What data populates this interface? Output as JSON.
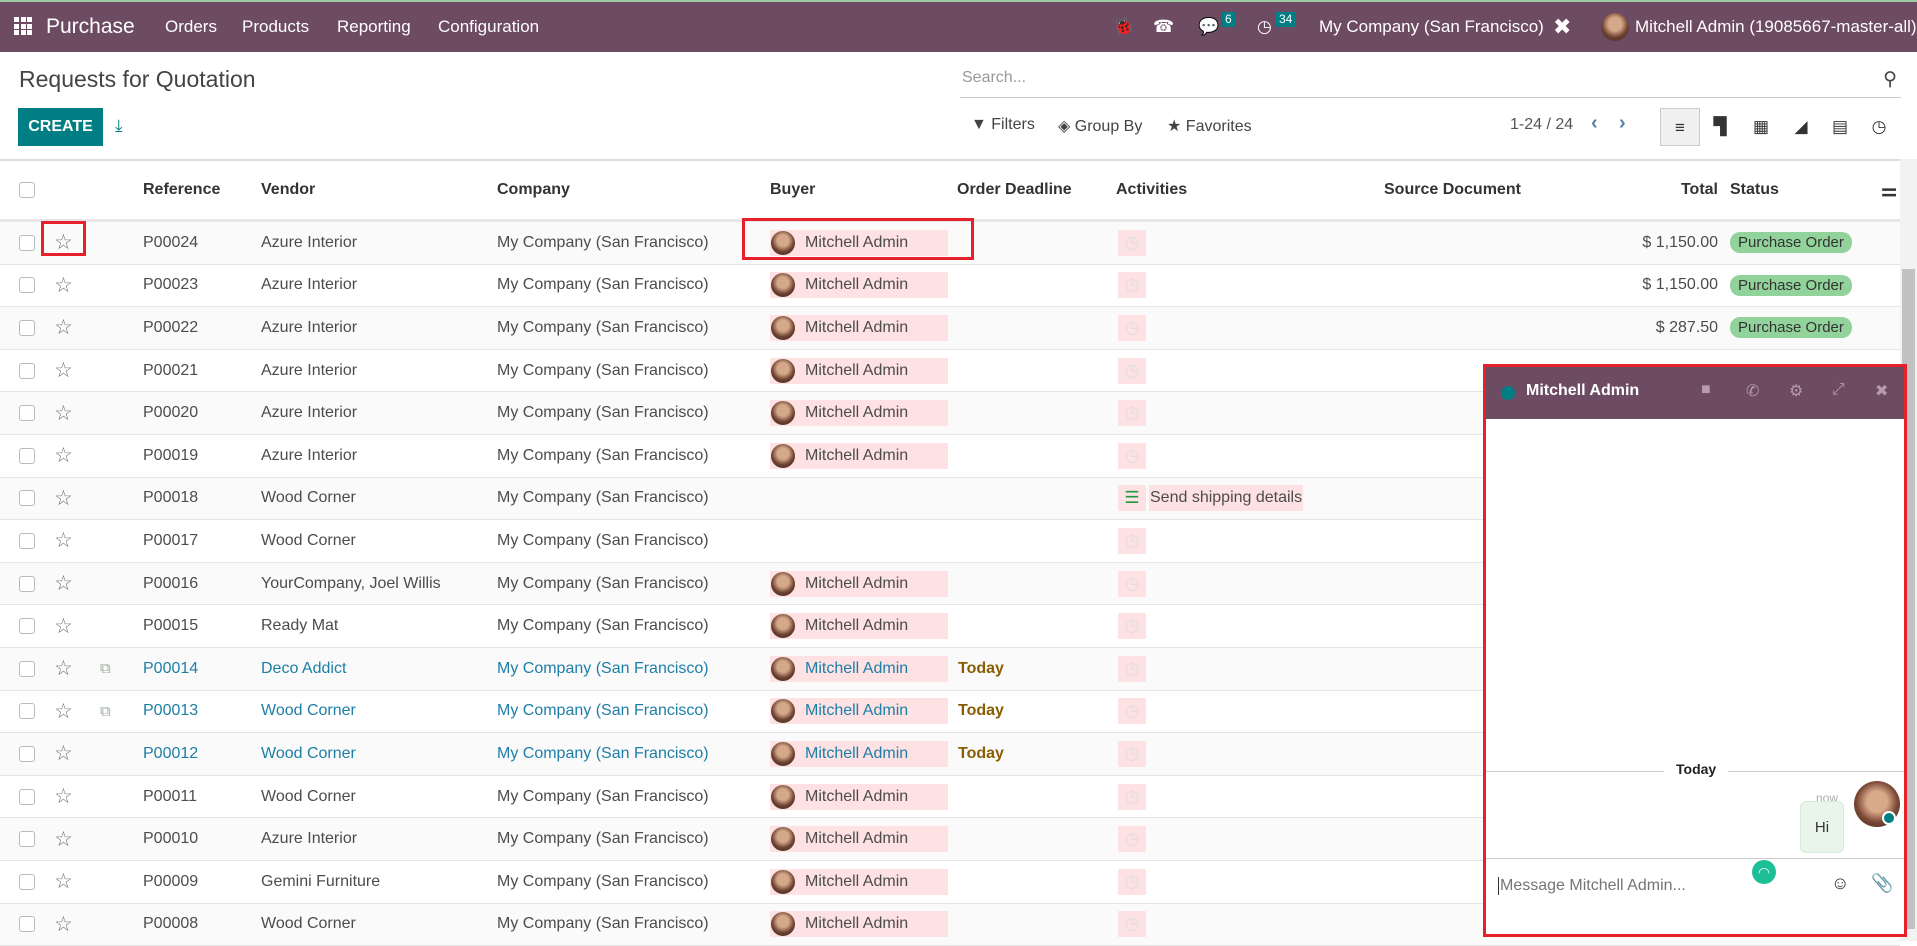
{
  "topbar": {
    "app": "Purchase",
    "menu": [
      "Orders",
      "Products",
      "Reporting",
      "Configuration"
    ],
    "messages_badge": "6",
    "activities_badge": "34",
    "company": "My Company (San Francisco)",
    "user": "Mitchell Admin (19085667-master-all)",
    "accent": "#6d4b63"
  },
  "page": {
    "title": "Requests for Quotation",
    "create_label": "CREATE",
    "search_placeholder": "Search...",
    "filters": "Filters",
    "group_by": "Group By",
    "favorites": "Favorites",
    "pager": "1-24 / 24",
    "active_view": "list"
  },
  "columns": [
    "Reference",
    "Vendor",
    "Company",
    "Buyer",
    "Order Deadline",
    "Activities",
    "Source Document",
    "Total",
    "Status"
  ],
  "rows": [
    {
      "ref": "P00024",
      "vendor": "Azure Interior",
      "company": "My Company (San Francisco)",
      "buyer": "Mitchell Admin",
      "deadline": "",
      "activity": "",
      "total": "$ 1,150.00",
      "status": "Purchase Order"
    },
    {
      "ref": "P00023",
      "vendor": "Azure Interior",
      "company": "My Company (San Francisco)",
      "buyer": "Mitchell Admin",
      "deadline": "",
      "activity": "",
      "total": "$ 1,150.00",
      "status": "Purchase Order"
    },
    {
      "ref": "P00022",
      "vendor": "Azure Interior",
      "company": "My Company (San Francisco)",
      "buyer": "Mitchell Admin",
      "deadline": "",
      "activity": "",
      "total": "$ 287.50",
      "status": "Purchase Order"
    },
    {
      "ref": "P00021",
      "vendor": "Azure Interior",
      "company": "My Company (San Francisco)",
      "buyer": "Mitchell Admin",
      "deadline": "",
      "activity": "",
      "total": "",
      "status": ""
    },
    {
      "ref": "P00020",
      "vendor": "Azure Interior",
      "company": "My Company (San Francisco)",
      "buyer": "Mitchell Admin",
      "deadline": "",
      "activity": "",
      "total": "",
      "status": ""
    },
    {
      "ref": "P00019",
      "vendor": "Azure Interior",
      "company": "My Company (San Francisco)",
      "buyer": "Mitchell Admin",
      "deadline": "",
      "activity": "",
      "total": "",
      "status": ""
    },
    {
      "ref": "P00018",
      "vendor": "Wood Corner",
      "company": "My Company (San Francisco)",
      "buyer": "",
      "deadline": "",
      "activity": "Send shipping details",
      "total": "",
      "status": ""
    },
    {
      "ref": "P00017",
      "vendor": "Wood Corner",
      "company": "My Company (San Francisco)",
      "buyer": "",
      "deadline": "",
      "activity": "",
      "total": "",
      "status": ""
    },
    {
      "ref": "P00016",
      "vendor": "YourCompany, Joel Willis",
      "company": "My Company (San Francisco)",
      "buyer": "Mitchell Admin",
      "deadline": "",
      "activity": "",
      "total": "",
      "status": ""
    },
    {
      "ref": "P00015",
      "vendor": "Ready Mat",
      "company": "My Company (San Francisco)",
      "buyer": "Mitchell Admin",
      "deadline": "",
      "activity": "",
      "total": "",
      "status": ""
    },
    {
      "ref": "P00014",
      "vendor": "Deco Addict",
      "company": "My Company (San Francisco)",
      "buyer": "Mitchell Admin",
      "deadline": "Today",
      "activity": "",
      "total": "",
      "status": "",
      "linked": true,
      "dup": true
    },
    {
      "ref": "P00013",
      "vendor": "Wood Corner",
      "company": "My Company (San Francisco)",
      "buyer": "Mitchell Admin",
      "deadline": "Today",
      "activity": "",
      "total": "",
      "status": "",
      "linked": true,
      "dup": true
    },
    {
      "ref": "P00012",
      "vendor": "Wood Corner",
      "company": "My Company (San Francisco)",
      "buyer": "Mitchell Admin",
      "deadline": "Today",
      "activity": "",
      "total": "",
      "status": "",
      "linked": true
    },
    {
      "ref": "P00011",
      "vendor": "Wood Corner",
      "company": "My Company (San Francisco)",
      "buyer": "Mitchell Admin",
      "deadline": "",
      "activity": "",
      "total": "",
      "status": ""
    },
    {
      "ref": "P00010",
      "vendor": "Azure Interior",
      "company": "My Company (San Francisco)",
      "buyer": "Mitchell Admin",
      "deadline": "",
      "activity": "",
      "total": "",
      "status": ""
    },
    {
      "ref": "P00009",
      "vendor": "Gemini Furniture",
      "company": "My Company (San Francisco)",
      "buyer": "Mitchell Admin",
      "deadline": "",
      "activity": "",
      "total": "",
      "status": ""
    },
    {
      "ref": "P00008",
      "vendor": "Wood Corner",
      "company": "My Company (San Francisco)",
      "buyer": "Mitchell Admin",
      "deadline": "",
      "activity": "",
      "total": "",
      "status": ""
    }
  ],
  "chat": {
    "name": "Mitchell Admin",
    "date_sep": "Today",
    "time": "now",
    "message": "Hi",
    "placeholder": "Message Mitchell Admin..."
  }
}
